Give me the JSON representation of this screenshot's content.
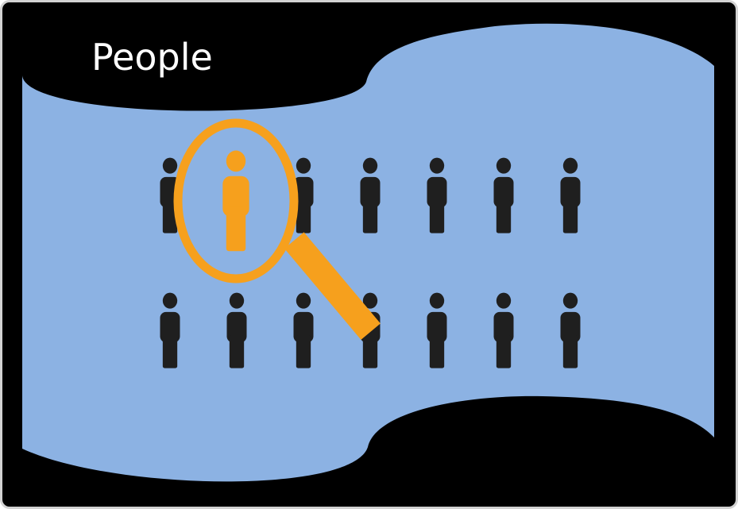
{
  "title": "People",
  "colors": {
    "frame_background": "#000000",
    "frame_border": "#d2d2d2",
    "banner_fill": "#8cb2e3",
    "person_silhouette": "#1f1f1f",
    "highlight_accent": "#f6a01d",
    "title_text": "#ffffff"
  },
  "icons": {
    "crowd": "person-icon",
    "highlighted_person": "person-icon",
    "magnifier": "magnifying-glass-icon"
  },
  "crowd": {
    "rows": 2,
    "people_per_row": 7,
    "highlighted": {
      "row": 1,
      "position": 2
    }
  }
}
